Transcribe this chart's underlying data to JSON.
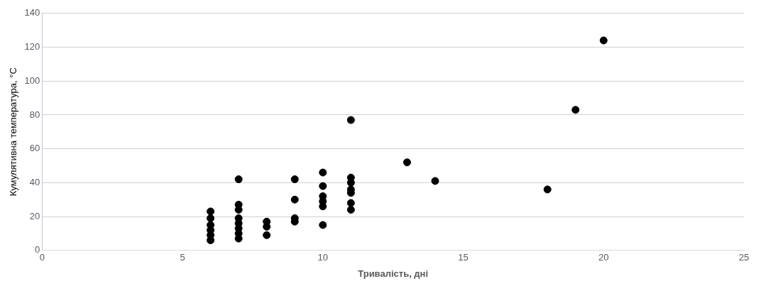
{
  "chart_data": {
    "type": "scatter",
    "xlabel": "Тривалість, дні",
    "ylabel": "Кумулятивна температура, °С",
    "xlim": [
      0,
      25
    ],
    "xticks": [
      0,
      5,
      10,
      15,
      20,
      25
    ],
    "ylim": [
      0,
      140
    ],
    "yticks": [
      0,
      20,
      40,
      60,
      80,
      100,
      120,
      140
    ],
    "grid": "y",
    "marker": "circle",
    "series": [
      {
        "color": "#000000",
        "x": [
          6,
          6,
          6,
          6,
          6,
          6,
          7,
          7,
          7,
          7,
          7,
          7,
          7,
          7,
          8,
          8,
          8,
          9,
          9,
          9,
          9,
          10,
          10,
          10,
          10,
          10,
          10,
          11,
          11,
          11,
          11,
          11,
          11,
          11,
          13,
          14,
          18,
          19,
          20
        ],
        "values": [
          23,
          19,
          15,
          12,
          9,
          6,
          42,
          27,
          24,
          19,
          16,
          13,
          10,
          7,
          17,
          14,
          9,
          42,
          30,
          19,
          17,
          46,
          38,
          32,
          29,
          26,
          15,
          77,
          43,
          40,
          36,
          34,
          28,
          24,
          52,
          41,
          36,
          83,
          124
        ]
      }
    ]
  }
}
